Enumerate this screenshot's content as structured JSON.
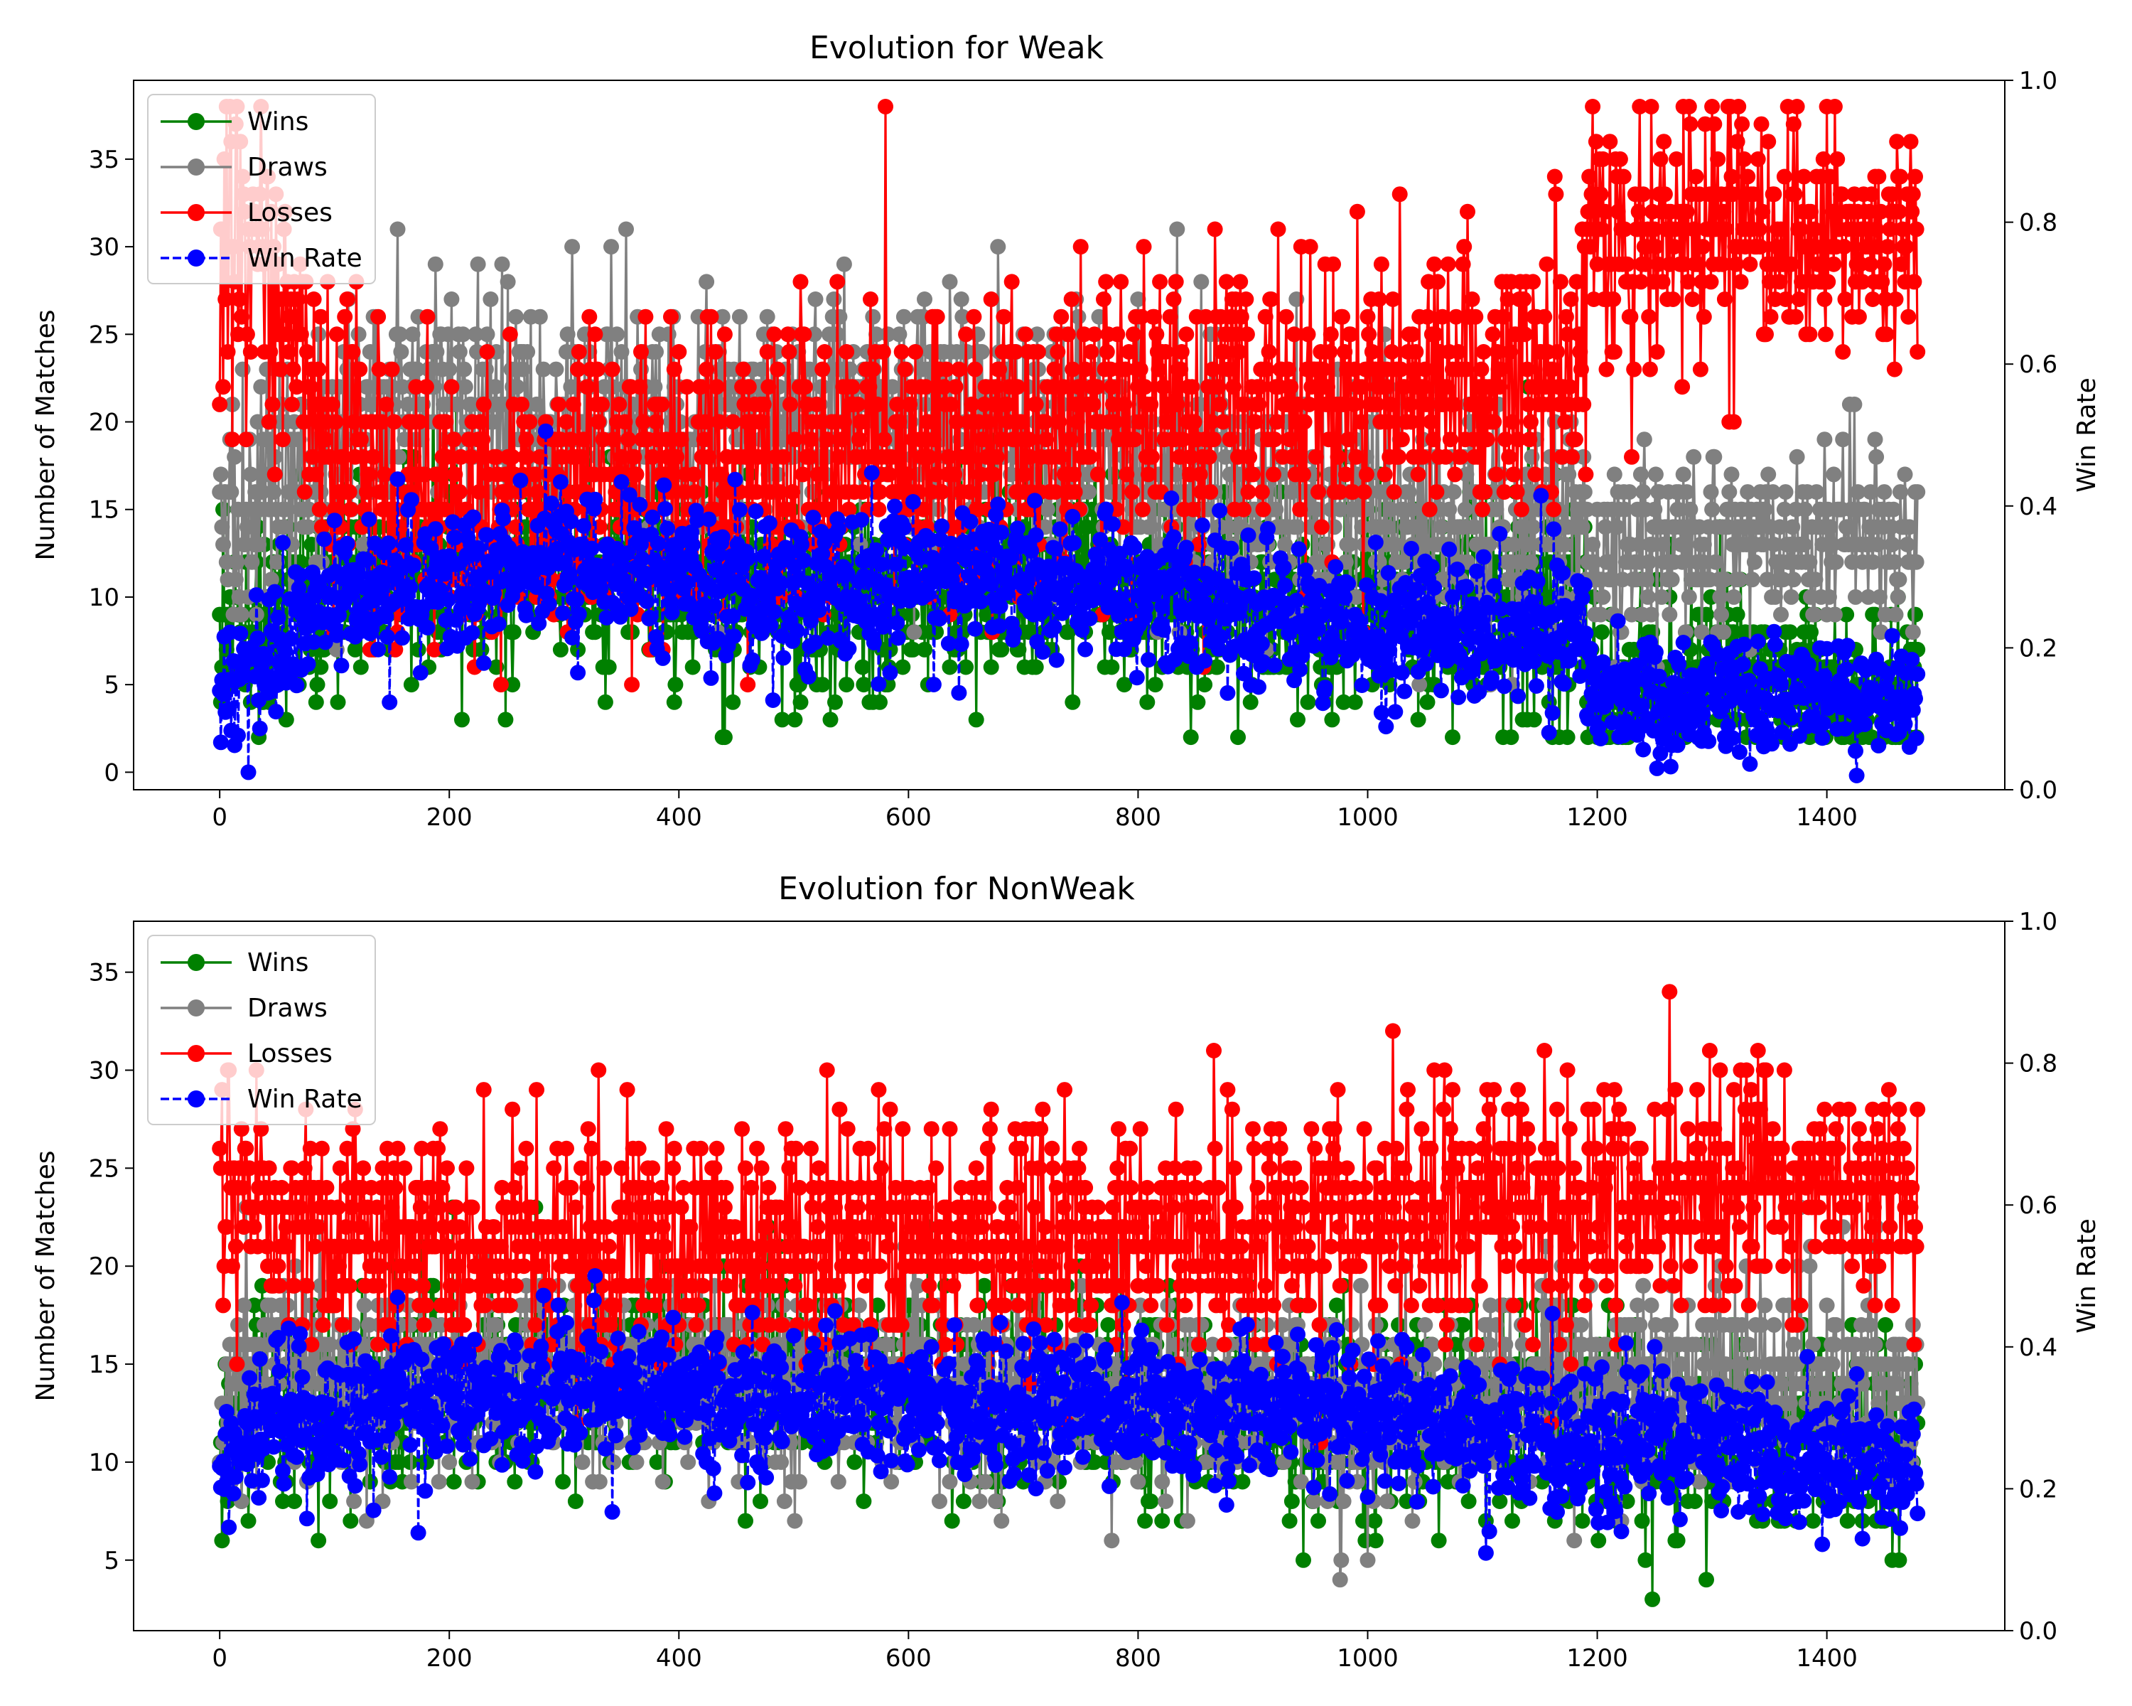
{
  "colors": {
    "wins": "#008000",
    "draws": "#808080",
    "losses": "#ff0000",
    "win_rate": "#0000ff"
  },
  "chart_data": [
    {
      "type": "line",
      "title": "Evolution for Weak",
      "xlabel": "",
      "ylabel": "Number of Matches",
      "y2label": "Win Rate",
      "xlim": [
        -75,
        1555
      ],
      "ylim": [
        -1,
        39.5
      ],
      "y2lim": [
        0,
        1
      ],
      "xticks": [
        "0",
        "200",
        "400",
        "600",
        "800",
        "1000",
        "1200",
        "1400"
      ],
      "yticks": [
        "0",
        "5",
        "10",
        "15",
        "20",
        "25",
        "30",
        "35"
      ],
      "y2ticks": [
        "0.0",
        "0.2",
        "0.4",
        "0.6",
        "0.8",
        "1.0"
      ],
      "legend": {
        "placement": "upper-left",
        "entries": [
          "Wins",
          "Draws",
          "Losses",
          "Win Rate"
        ]
      },
      "grid": false,
      "n_points": 1480,
      "series": [
        {
          "name": "Wins",
          "axis": "left",
          "segments": [
            {
              "x": [
                0,
                20,
                100,
                300,
                500,
                700,
                1000,
                1190
              ],
              "mean": [
                8,
                9,
                11,
                12,
                10,
                11,
                9,
                10
              ],
              "spread": 3
            },
            {
              "x": [
                1200,
                1480
              ],
              "mean": [
                5,
                5
              ],
              "spread": 2.5
            }
          ],
          "min": 2,
          "max": 27
        },
        {
          "name": "Draws",
          "axis": "left",
          "segments": [
            {
              "x": [
                0,
                30,
                150,
                400,
                600,
                800,
                1000,
                1190
              ],
              "mean": [
                14,
                15,
                21,
                20,
                21,
                17,
                15,
                14
              ],
              "spread": 3.5
            },
            {
              "x": [
                1200,
                1480
              ],
              "mean": [
                13,
                13
              ],
              "spread": 2.5
            }
          ],
          "min": 4,
          "max": 31
        },
        {
          "name": "Losses",
          "axis": "left",
          "segments": [
            {
              "x": [
                0,
                40,
                100,
                200,
                400,
                600,
                800,
                1000,
                1190
              ],
              "mean": [
                30,
                30,
                18,
                15,
                17,
                18,
                21,
                22,
                23
              ],
              "spread": 4
            },
            {
              "x": [
                1200,
                1480
              ],
              "mean": [
                31,
                31
              ],
              "spread": 3.5
            }
          ],
          "min": 5,
          "max": 38
        },
        {
          "name": "Win Rate",
          "axis": "right",
          "segments": [
            {
              "x": [
                0,
                20,
                100,
                300,
                500,
                700,
                1000,
                1190
              ],
              "mean": [
                0.12,
                0.15,
                0.28,
                0.31,
                0.28,
                0.3,
                0.23,
                0.22
              ],
              "spread": 0.05
            },
            {
              "x": [
                1200,
                1480
              ],
              "mean": [
                0.13,
                0.13
              ],
              "spread": 0.04
            }
          ],
          "min": 0.02,
          "max": 0.54
        }
      ]
    },
    {
      "type": "line",
      "title": "Evolution for NonWeak",
      "xlabel": "",
      "ylabel": "Number of Matches",
      "y2label": "Win Rate",
      "xlim": [
        -75,
        1555
      ],
      "ylim": [
        1.4,
        37.6
      ],
      "y2lim": [
        0,
        1
      ],
      "xticks": [
        "0",
        "200",
        "400",
        "600",
        "800",
        "1000",
        "1200",
        "1400"
      ],
      "yticks": [
        "5",
        "10",
        "15",
        "20",
        "25",
        "30",
        "35"
      ],
      "y2ticks": [
        "0.0",
        "0.2",
        "0.4",
        "0.6",
        "0.8",
        "1.0"
      ],
      "legend": {
        "placement": "upper-left",
        "entries": [
          "Wins",
          "Draws",
          "Losses",
          "Win Rate"
        ]
      },
      "grid": false,
      "n_points": 1480,
      "series": [
        {
          "name": "Wins",
          "axis": "left",
          "segments": [
            {
              "x": [
                0,
                30,
                300,
                600,
                900,
                1200,
                1480
              ],
              "mean": [
                10,
                13,
                15,
                14,
                13,
                12,
                11
              ],
              "spread": 2.5
            }
          ],
          "min": 3,
          "max": 25
        },
        {
          "name": "Draws",
          "axis": "left",
          "segments": [
            {
              "x": [
                0,
                30,
                300,
                600,
                900,
                1200,
                1480
              ],
              "mean": [
                13,
                15,
                15,
                14,
                13,
                14,
                14
              ],
              "spread": 2.5
            }
          ],
          "min": 4,
          "max": 30
        },
        {
          "name": "Losses",
          "axis": "left",
          "segments": [
            {
              "x": [
                0,
                30,
                300,
                600,
                900,
                1200,
                1480
              ],
              "mean": [
                25,
                22,
                21,
                21,
                22,
                23,
                24
              ],
              "spread": 3
            }
          ],
          "min": 8,
          "max": 36
        },
        {
          "name": "Win Rate",
          "axis": "right",
          "segments": [
            {
              "x": [
                0,
                30,
                300,
                600,
                900,
                1200,
                1480
              ],
              "mean": [
                0.2,
                0.3,
                0.34,
                0.32,
                0.31,
                0.27,
                0.23
              ],
              "spread": 0.05
            }
          ],
          "min": 0.06,
          "max": 0.5
        }
      ]
    }
  ]
}
